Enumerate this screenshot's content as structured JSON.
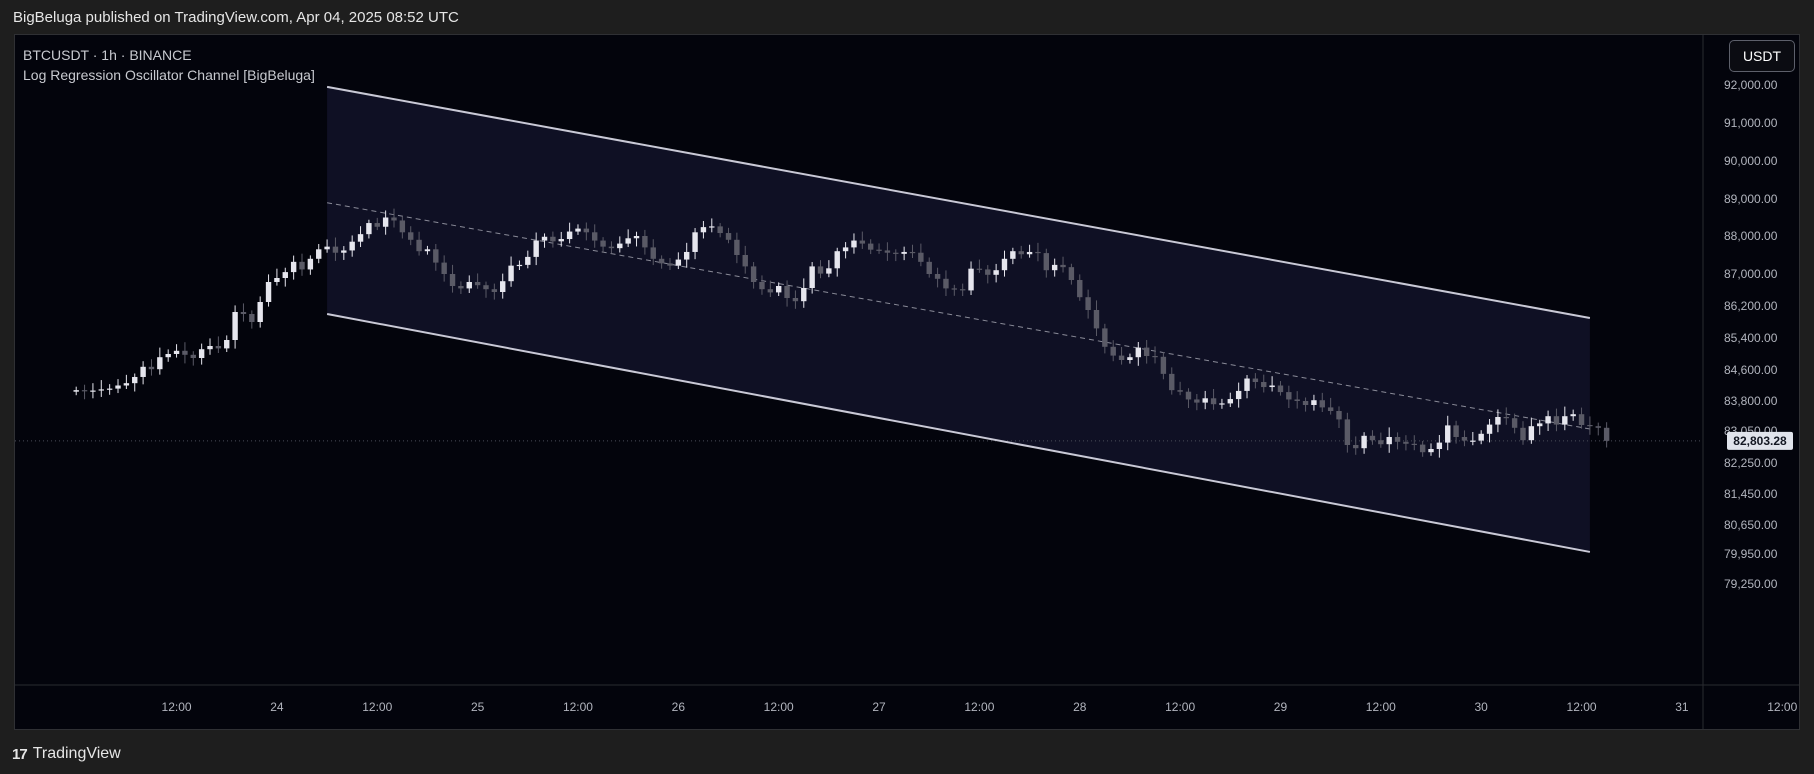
{
  "header": {
    "publisher_line": "BigBeluga published on TradingView.com, Apr 04, 2025 08:52 UTC"
  },
  "legend": {
    "symbol_line": "BTCUSDT · 1h · BINANCE",
    "indicator_line": "Log Regression Oscillator Channel [BigBeluga]"
  },
  "currency_button": {
    "label": "USDT"
  },
  "footer": {
    "logo_glyph": "17",
    "brand": "TradingView"
  },
  "colors": {
    "background": "#03040c",
    "channel_fill": "#0f1024",
    "channel_line": "#c9c9d6",
    "midline": "#8a8b98",
    "candle_up": "#e6e6ee",
    "candle_down": "#5a5a66",
    "axis_text": "#b2b5be",
    "price_label_bg": "#e0e3eb",
    "price_label_text": "#131722"
  },
  "chart_data": {
    "type": "candlestick",
    "x_axis": {
      "ticks": [
        {
          "label": "12:00",
          "t": 12
        },
        {
          "label": "24",
          "t": 24
        },
        {
          "label": "12:00",
          "t": 36
        },
        {
          "label": "25",
          "t": 48
        },
        {
          "label": "12:00",
          "t": 60
        },
        {
          "label": "26",
          "t": 72
        },
        {
          "label": "12:00",
          "t": 84
        },
        {
          "label": "27",
          "t": 96
        },
        {
          "label": "12:00",
          "t": 108
        },
        {
          "label": "28",
          "t": 120
        },
        {
          "label": "12:00",
          "t": 132
        },
        {
          "label": "29",
          "t": 144
        },
        {
          "label": "12:00",
          "t": 156
        },
        {
          "label": "30",
          "t": 168
        },
        {
          "label": "12:00",
          "t": 180
        },
        {
          "label": "31",
          "t": 192
        },
        {
          "label": "12:00",
          "t": 204
        }
      ]
    },
    "y_axis": {
      "ticks": [
        "92,000.00",
        "91,000.00",
        "90,000.00",
        "89,000.00",
        "88,000.00",
        "87,000.00",
        "86,200.00",
        "85,400.00",
        "84,600.00",
        "83,800.00",
        "83,050.00",
        "82,250.00",
        "81,450.00",
        "80,650.00",
        "79,950.00",
        "79,250.00"
      ],
      "last_price_label": "82,803.28",
      "last_price": 82803.28
    },
    "channel": {
      "start_t": 30,
      "end_t": 181,
      "upper": [
        91950,
        85900
      ],
      "middle": [
        88900,
        83100
      ],
      "lower": [
        86000,
        80000
      ]
    },
    "candles_close": [
      84080,
      84060,
      84070,
      84100,
      84120,
      84200,
      84260,
      84420,
      84680,
      84620,
      84920,
      85000,
      85080,
      84980,
      84900,
      85120,
      85200,
      85140,
      85350,
      86050,
      86000,
      85800,
      86300,
      86800,
      86900,
      87050,
      87320,
      87120,
      87400,
      87650,
      87720,
      87560,
      87620,
      87850,
      88050,
      88350,
      88250,
      88500,
      88420,
      88100,
      87900,
      87600,
      87650,
      87300,
      87000,
      86700,
      86640,
      86800,
      86720,
      86620,
      86550,
      86820,
      87220,
      87240,
      87450,
      87880,
      87980,
      87860,
      87920,
      88120,
      88200,
      88100,
      87880,
      87720,
      87680,
      87800,
      87940,
      88000,
      87700,
      87400,
      87280,
      87220,
      87380,
      87580,
      88100,
      88240,
      88260,
      88080,
      87900,
      87500,
      87200,
      86800,
      86620,
      86540,
      86700,
      86400,
      86320,
      86650,
      87200,
      87010,
      87150,
      87600,
      87700,
      87880,
      87800,
      87640,
      87620,
      87560,
      87530,
      87580,
      87560,
      87320,
      87000,
      86880,
      86640,
      86620,
      86590,
      87140,
      87120,
      86980,
      87100,
      87400,
      87600,
      87520,
      87580,
      87550,
      87100,
      87240,
      87180,
      86850,
      86420,
      86100,
      85640,
      85180,
      84960,
      84850,
      84920,
      85160,
      84950,
      84930,
      84500,
      84080,
      84040,
      83840,
      83760,
      83870,
      83720,
      83740,
      83850,
      84060,
      84380,
      84290,
      84160,
      84200,
      84030,
      83840,
      83800,
      83700,
      83820,
      83640,
      83550,
      83340,
      82700,
      82620,
      82930,
      82820,
      82720,
      82900,
      82780,
      82730,
      82710,
      82520,
      82600,
      82760,
      83190,
      82900,
      82810,
      82810,
      82980,
      83210,
      83400,
      83370,
      83130,
      82820,
      83170,
      83240,
      83420,
      83210,
      83420,
      83470,
      83200,
      83170,
      83130,
      82803
    ]
  }
}
